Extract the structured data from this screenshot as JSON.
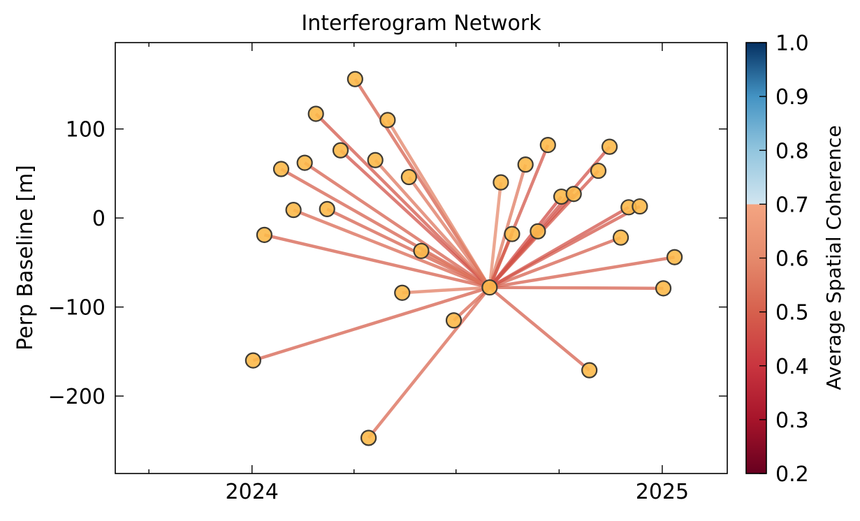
{
  "chart_data": {
    "type": "scatter",
    "title": "Interferogram Network",
    "xlabel": "",
    "ylabel": "Perp Baseline [m]",
    "xlim": [
      "2023-09-01",
      "2025-02-28"
    ],
    "ylim": [
      -287,
      197
    ],
    "xticks": [
      {
        "date": "2024-01-01",
        "label": "2024"
      },
      {
        "date": "2025-01-01",
        "label": "2025"
      }
    ],
    "yticks": [
      {
        "value": 100,
        "label": "100"
      },
      {
        "value": 0,
        "label": "0"
      },
      {
        "value": -100,
        "label": "−100"
      },
      {
        "value": -200,
        "label": "−200"
      }
    ],
    "reference": {
      "date": "2024-07-31",
      "bperp": -78
    },
    "acquisitions": [
      {
        "date": "2024-01-02",
        "bperp": -160
      },
      {
        "date": "2024-01-12",
        "bperp": -19
      },
      {
        "date": "2024-01-27",
        "bperp": 55
      },
      {
        "date": "2024-02-07",
        "bperp": 9
      },
      {
        "date": "2024-02-17",
        "bperp": 62
      },
      {
        "date": "2024-02-27",
        "bperp": 117
      },
      {
        "date": "2024-03-08",
        "bperp": 10
      },
      {
        "date": "2024-03-20",
        "bperp": 76
      },
      {
        "date": "2024-04-02",
        "bperp": 156
      },
      {
        "date": "2024-04-14",
        "bperp": -247
      },
      {
        "date": "2024-04-20",
        "bperp": 65
      },
      {
        "date": "2024-05-01",
        "bperp": 110
      },
      {
        "date": "2024-05-14",
        "bperp": -84
      },
      {
        "date": "2024-05-20",
        "bperp": 46
      },
      {
        "date": "2024-05-31",
        "bperp": -37
      },
      {
        "date": "2024-06-29",
        "bperp": -115
      },
      {
        "date": "2024-08-10",
        "bperp": 40
      },
      {
        "date": "2024-08-20",
        "bperp": -18
      },
      {
        "date": "2024-09-01",
        "bperp": 60
      },
      {
        "date": "2024-09-12",
        "bperp": -15
      },
      {
        "date": "2024-09-21",
        "bperp": 82
      },
      {
        "date": "2024-10-03",
        "bperp": 24
      },
      {
        "date": "2024-10-14",
        "bperp": 27
      },
      {
        "date": "2024-10-28",
        "bperp": -171
      },
      {
        "date": "2024-11-05",
        "bperp": 53
      },
      {
        "date": "2024-11-15",
        "bperp": 80
      },
      {
        "date": "2024-11-25",
        "bperp": -22
      },
      {
        "date": "2024-12-02",
        "bperp": 12
      },
      {
        "date": "2024-12-12",
        "bperp": 13
      },
      {
        "date": "2025-01-02",
        "bperp": -79
      },
      {
        "date": "2025-01-12",
        "bperp": -44
      }
    ],
    "interferograms": [
      {
        "from": "2024-01-02",
        "to": "2024-07-31",
        "coherence": 0.5
      },
      {
        "from": "2024-01-12",
        "to": "2024-07-31",
        "coherence": 0.5
      },
      {
        "from": "2024-01-27",
        "to": "2024-07-31",
        "coherence": 0.5
      },
      {
        "from": "2024-02-07",
        "to": "2024-07-31",
        "coherence": 0.52
      },
      {
        "from": "2024-02-17",
        "to": "2024-07-31",
        "coherence": 0.5
      },
      {
        "from": "2024-02-27",
        "to": "2024-07-31",
        "coherence": 0.48
      },
      {
        "from": "2024-03-08",
        "to": "2024-07-31",
        "coherence": 0.5
      },
      {
        "from": "2024-03-20",
        "to": "2024-07-31",
        "coherence": 0.47
      },
      {
        "from": "2024-04-02",
        "to": "2024-07-31",
        "coherence": 0.5
      },
      {
        "from": "2024-04-14",
        "to": "2024-07-31",
        "coherence": 0.52
      },
      {
        "from": "2024-04-20",
        "to": "2024-07-31",
        "coherence": 0.55
      },
      {
        "from": "2024-05-01",
        "to": "2024-07-31",
        "coherence": 0.58
      },
      {
        "from": "2024-05-14",
        "to": "2024-07-31",
        "coherence": 0.57
      },
      {
        "from": "2024-05-20",
        "to": "2024-07-31",
        "coherence": 0.55
      },
      {
        "from": "2024-05-31",
        "to": "2024-07-31",
        "coherence": 0.55
      },
      {
        "from": "2024-06-29",
        "to": "2024-07-31",
        "coherence": 0.52
      },
      {
        "from": "2024-08-10",
        "to": "2024-07-31",
        "coherence": 0.6
      },
      {
        "from": "2024-08-20",
        "to": "2024-07-31",
        "coherence": 0.52
      },
      {
        "from": "2024-09-01",
        "to": "2024-07-31",
        "coherence": 0.56
      },
      {
        "from": "2024-09-12",
        "to": "2024-07-31",
        "coherence": 0.5
      },
      {
        "from": "2024-09-21",
        "to": "2024-07-31",
        "coherence": 0.48
      },
      {
        "from": "2024-10-03",
        "to": "2024-07-31",
        "coherence": 0.45
      },
      {
        "from": "2024-10-14",
        "to": "2024-07-31",
        "coherence": 0.46
      },
      {
        "from": "2024-10-28",
        "to": "2024-07-31",
        "coherence": 0.5
      },
      {
        "from": "2024-11-05",
        "to": "2024-07-31",
        "coherence": 0.48
      },
      {
        "from": "2024-11-15",
        "to": "2024-07-31",
        "coherence": 0.47
      },
      {
        "from": "2024-11-25",
        "to": "2024-07-31",
        "coherence": 0.5
      },
      {
        "from": "2024-12-02",
        "to": "2024-07-31",
        "coherence": 0.47
      },
      {
        "from": "2024-12-12",
        "to": "2024-07-31",
        "coherence": 0.48
      },
      {
        "from": "2025-01-02",
        "to": "2024-07-31",
        "coherence": 0.5
      },
      {
        "from": "2025-01-12",
        "to": "2024-07-31",
        "coherence": 0.5
      }
    ],
    "colorbar": {
      "label": "Average Spatial Coherence",
      "range": [
        0.2,
        1.0
      ],
      "ticks": [
        {
          "value": 1.0,
          "label": "1.0"
        },
        {
          "value": 0.9,
          "label": "0.9"
        },
        {
          "value": 0.8,
          "label": "0.8"
        },
        {
          "value": 0.7,
          "label": "0.7"
        },
        {
          "value": 0.6,
          "label": "0.6"
        },
        {
          "value": 0.5,
          "label": "0.5"
        },
        {
          "value": 0.4,
          "label": "0.4"
        },
        {
          "value": 0.3,
          "label": "0.3"
        },
        {
          "value": 0.2,
          "label": "0.2"
        }
      ],
      "colormap_stops": [
        {
          "value": 0.2,
          "color": "#67001f"
        },
        {
          "value": 0.3,
          "color": "#a6142a"
        },
        {
          "value": 0.4,
          "color": "#c9353f"
        },
        {
          "value": 0.5,
          "color": "#d6604d"
        },
        {
          "value": 0.6,
          "color": "#e58a6c"
        },
        {
          "value": 0.7,
          "color": "#f4a582"
        },
        {
          "value": 0.7001,
          "color": "#d1e5f0"
        },
        {
          "value": 0.8,
          "color": "#92c5de"
        },
        {
          "value": 0.9,
          "color": "#4393c3"
        },
        {
          "value": 1.0,
          "color": "#053061"
        }
      ]
    },
    "grid": false,
    "legend": "none",
    "colors": {
      "marker_fill": "#fcb94a",
      "marker_edge": "#3d3a33",
      "interferogram_line": "#c9353f"
    }
  }
}
